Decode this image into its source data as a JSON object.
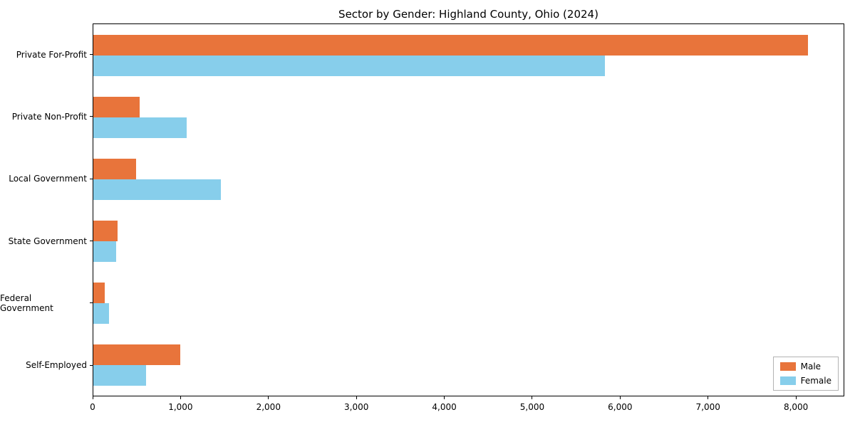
{
  "chart_data": {
    "type": "bar",
    "orientation": "horizontal",
    "title": "Sector by Gender: Highland County, Ohio (2024)",
    "categories": [
      "Private For-Profit",
      "Private Non-Profit",
      "Local Government",
      "State Government",
      "Federal Government",
      "Self-Employed"
    ],
    "series": [
      {
        "name": "Male",
        "color": "#e8743b",
        "values": [
          8140,
          530,
          490,
          280,
          130,
          990
        ]
      },
      {
        "name": "Female",
        "color": "#87ceeb",
        "values": [
          5830,
          1060,
          1450,
          260,
          180,
          600
        ]
      }
    ],
    "xlim": [
      0,
      8550
    ],
    "xticks": [
      0,
      1000,
      2000,
      3000,
      4000,
      5000,
      6000,
      7000,
      8000
    ],
    "xtick_labels": [
      "0",
      "1,000",
      "2,000",
      "3,000",
      "4,000",
      "5,000",
      "6,000",
      "7,000",
      "8,000"
    ],
    "ylabel": "",
    "xlabel": "",
    "grid": false,
    "legend_position": "lower right"
  }
}
